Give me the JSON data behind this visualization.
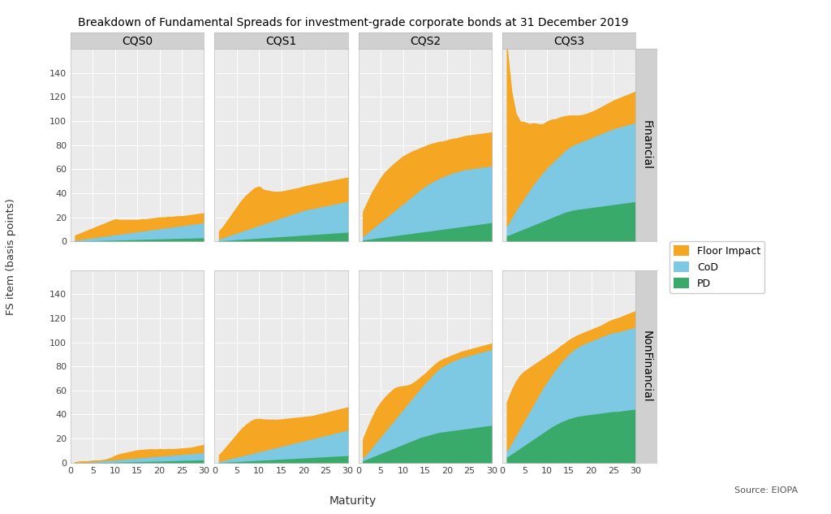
{
  "title": "Breakdown of Fundamental Spreads for investment-grade corporate bonds at 31 December 2019",
  "xlabel": "Maturity",
  "ylabel": "FS item (basis points)",
  "source": "Source: EIOPA",
  "col_labels": [
    "CQS0",
    "CQS1",
    "CQS2",
    "CQS3"
  ],
  "row_labels": [
    "Financial",
    "NonFinancial"
  ],
  "colors": {
    "floor_impact": "#F5A623",
    "cod": "#7DC8E3",
    "pd": "#3AAA6A"
  },
  "legend_labels": [
    "Floor Impact",
    "CoD",
    "PD"
  ],
  "bg_color": "#EBEBEB",
  "panel_bg": "#EBEBEB",
  "strip_bg": "#D0D0D0",
  "ylim": [
    0,
    160
  ],
  "yticks": [
    0,
    20,
    40,
    60,
    80,
    100,
    120,
    140
  ],
  "xticks": [
    0,
    5,
    10,
    15,
    20,
    25,
    30
  ],
  "data": {
    "Financial": {
      "CQS0": {
        "maturity": [
          1,
          2,
          3,
          4,
          5,
          6,
          7,
          8,
          9,
          10,
          11,
          12,
          13,
          14,
          15,
          16,
          17,
          18,
          19,
          20,
          21,
          22,
          23,
          24,
          25,
          26,
          27,
          28,
          29,
          30
        ],
        "pd": [
          0.5,
          0.6,
          0.7,
          0.8,
          0.9,
          1.0,
          1.1,
          1.2,
          1.3,
          1.4,
          1.5,
          1.6,
          1.7,
          1.8,
          1.9,
          2.0,
          2.1,
          2.2,
          2.3,
          2.4,
          2.5,
          2.6,
          2.7,
          2.8,
          2.9,
          3.0,
          3.1,
          3.2,
          3.3,
          3.4
        ],
        "cod": [
          0.8,
          1.2,
          1.6,
          2.0,
          2.4,
          2.8,
          3.2,
          3.6,
          4.0,
          4.4,
          4.8,
          5.2,
          5.6,
          6.0,
          6.4,
          6.8,
          7.2,
          7.6,
          8.0,
          8.4,
          8.8,
          9.2,
          9.6,
          10.0,
          10.4,
          10.8,
          11.2,
          11.6,
          12.0,
          12.4
        ],
        "floor": [
          3.5,
          4.5,
          5.5,
          6.5,
          7.5,
          8.5,
          9.5,
          10.5,
          11.5,
          12.5,
          11.5,
          11.0,
          10.5,
          10.0,
          9.5,
          9.5,
          9.0,
          9.0,
          9.0,
          9.0,
          8.5,
          8.5,
          8.0,
          8.0,
          7.5,
          7.5,
          7.5,
          7.5,
          7.5,
          7.5
        ]
      },
      "CQS1": {
        "maturity": [
          1,
          2,
          3,
          4,
          5,
          6,
          7,
          8,
          9,
          10,
          11,
          12,
          13,
          14,
          15,
          16,
          17,
          18,
          19,
          20,
          21,
          22,
          23,
          24,
          25,
          26,
          27,
          28,
          29,
          30
        ],
        "pd": [
          0.8,
          1.0,
          1.3,
          1.5,
          1.8,
          2.0,
          2.3,
          2.5,
          2.8,
          3.0,
          3.3,
          3.5,
          3.8,
          4.0,
          4.3,
          4.5,
          4.8,
          5.0,
          5.3,
          5.5,
          5.8,
          6.0,
          6.3,
          6.5,
          6.8,
          7.0,
          7.3,
          7.5,
          7.8,
          8.0
        ],
        "cod": [
          1.5,
          2.5,
          3.5,
          4.5,
          5.5,
          6.5,
          7.5,
          8.5,
          9.5,
          10.5,
          11.5,
          12.5,
          13.5,
          14.5,
          15.5,
          16.5,
          17.5,
          18.5,
          19.5,
          20.5,
          21.0,
          21.5,
          22.0,
          22.5,
          23.0,
          23.5,
          24.0,
          24.5,
          25.0,
          25.5
        ],
        "floor": [
          6.0,
          9.0,
          13.0,
          17.0,
          21.0,
          25.0,
          28.0,
          30.0,
          32.0,
          32.0,
          28.0,
          26.0,
          24.0,
          22.5,
          21.5,
          21.0,
          20.5,
          20.0,
          19.5,
          19.5,
          19.5,
          19.5,
          19.5,
          19.5,
          19.5,
          19.5,
          19.5,
          19.5,
          19.5,
          19.5
        ]
      },
      "CQS2": {
        "maturity": [
          1,
          2,
          3,
          4,
          5,
          6,
          7,
          8,
          9,
          10,
          11,
          12,
          13,
          14,
          15,
          16,
          17,
          18,
          19,
          20,
          21,
          22,
          23,
          24,
          25,
          26,
          27,
          28,
          29,
          30
        ],
        "pd": [
          1.5,
          2.0,
          2.5,
          3.0,
          3.5,
          4.0,
          4.5,
          5.0,
          5.5,
          6.0,
          6.5,
          7.0,
          7.5,
          8.0,
          8.5,
          9.0,
          9.5,
          10.0,
          10.5,
          11.0,
          11.5,
          12.0,
          12.5,
          13.0,
          13.5,
          14.0,
          14.5,
          15.0,
          15.5,
          16.0
        ],
        "cod": [
          3.0,
          5.5,
          8.0,
          10.5,
          13.0,
          15.5,
          18.0,
          20.5,
          23.0,
          25.5,
          28.0,
          30.5,
          33.0,
          35.5,
          37.5,
          39.5,
          41.0,
          42.5,
          43.5,
          44.5,
          45.5,
          46.0,
          46.5,
          47.0,
          47.0,
          47.0,
          47.0,
          47.0,
          47.0,
          47.0
        ],
        "floor": [
          20.0,
          25.0,
          30.0,
          33.0,
          36.0,
          38.0,
          38.5,
          39.0,
          39.0,
          39.0,
          38.0,
          37.0,
          35.5,
          34.0,
          33.0,
          32.0,
          31.0,
          30.0,
          29.0,
          28.5,
          28.0,
          27.5,
          27.5,
          27.5,
          27.5,
          27.5,
          27.5,
          27.5,
          27.5,
          27.5
        ]
      },
      "CQS3": {
        "maturity": [
          1,
          2,
          3,
          4,
          5,
          6,
          7,
          8,
          9,
          10,
          11,
          12,
          13,
          14,
          15,
          16,
          17,
          18,
          19,
          20,
          21,
          22,
          23,
          24,
          25,
          26,
          27,
          28,
          29,
          30
        ],
        "pd": [
          5.0,
          6.5,
          8.0,
          9.5,
          11.0,
          12.5,
          14.0,
          15.5,
          17.0,
          18.5,
          20.0,
          21.5,
          23.0,
          24.5,
          25.5,
          26.5,
          27.0,
          27.5,
          28.0,
          28.5,
          29.0,
          29.5,
          30.0,
          30.5,
          31.0,
          31.5,
          32.0,
          32.5,
          33.0,
          33.5
        ],
        "cod": [
          8.0,
          13.0,
          18.0,
          22.0,
          26.0,
          30.0,
          34.0,
          37.0,
          40.0,
          43.0,
          45.0,
          47.0,
          49.0,
          51.0,
          53.0,
          54.0,
          55.0,
          56.0,
          57.0,
          58.0,
          59.0,
          60.0,
          61.0,
          62.0,
          63.0,
          63.5,
          64.0,
          64.5,
          65.0,
          65.5
        ],
        "floor": [
          148.0,
          105.0,
          80.0,
          68.0,
          62.0,
          55.0,
          50.0,
          45.0,
          40.0,
          38.0,
          36.0,
          33.0,
          31.0,
          28.5,
          26.0,
          24.0,
          22.5,
          21.5,
          21.0,
          21.0,
          21.0,
          21.5,
          22.0,
          22.5,
          23.0,
          23.5,
          24.0,
          24.5,
          25.0,
          25.5
        ]
      }
    },
    "NonFinancial": {
      "CQS0": {
        "maturity": [
          1,
          2,
          3,
          4,
          5,
          6,
          7,
          8,
          9,
          10,
          11,
          12,
          13,
          14,
          15,
          16,
          17,
          18,
          19,
          20,
          21,
          22,
          23,
          24,
          25,
          26,
          27,
          28,
          29,
          30
        ],
        "pd": [
          0.1,
          0.15,
          0.2,
          0.25,
          0.3,
          0.35,
          0.4,
          0.5,
          0.6,
          0.7,
          0.8,
          0.9,
          1.0,
          1.1,
          1.2,
          1.3,
          1.4,
          1.5,
          1.6,
          1.7,
          1.8,
          1.9,
          2.0,
          2.1,
          2.2,
          2.3,
          2.4,
          2.5,
          2.6,
          2.7
        ],
        "cod": [
          0.2,
          0.4,
          0.6,
          0.8,
          1.0,
          1.2,
          1.4,
          1.6,
          1.8,
          2.0,
          2.2,
          2.4,
          2.6,
          2.8,
          3.0,
          3.2,
          3.4,
          3.6,
          3.8,
          4.0,
          4.2,
          4.4,
          4.6,
          4.8,
          5.0,
          5.2,
          5.4,
          5.6,
          5.8,
          6.0
        ],
        "floor": [
          0.0,
          0.0,
          0.0,
          0.0,
          0.0,
          0.0,
          0.0,
          0.5,
          1.5,
          3.0,
          4.0,
          4.5,
          5.0,
          5.5,
          6.0,
          6.0,
          6.0,
          6.0,
          5.5,
          5.5,
          5.0,
          5.0,
          4.5,
          4.5,
          4.5,
          4.5,
          4.5,
          5.0,
          5.5,
          6.0
        ]
      },
      "CQS1": {
        "maturity": [
          1,
          2,
          3,
          4,
          5,
          6,
          7,
          8,
          9,
          10,
          11,
          12,
          13,
          14,
          15,
          16,
          17,
          18,
          19,
          20,
          21,
          22,
          23,
          24,
          25,
          26,
          27,
          28,
          29,
          30
        ],
        "pd": [
          0.5,
          0.7,
          0.9,
          1.1,
          1.3,
          1.5,
          1.7,
          1.9,
          2.1,
          2.3,
          2.5,
          2.7,
          2.9,
          3.1,
          3.3,
          3.5,
          3.7,
          3.9,
          4.1,
          4.3,
          4.5,
          4.7,
          4.9,
          5.1,
          5.3,
          5.5,
          5.7,
          5.9,
          6.1,
          6.3
        ],
        "cod": [
          0.8,
          1.5,
          2.2,
          2.9,
          3.6,
          4.3,
          5.0,
          5.7,
          6.4,
          7.1,
          7.8,
          8.5,
          9.2,
          9.9,
          10.6,
          11.3,
          12.0,
          12.7,
          13.4,
          14.1,
          14.8,
          15.5,
          16.2,
          16.9,
          17.6,
          18.3,
          19.0,
          19.7,
          20.4,
          21.1
        ],
        "floor": [
          5.0,
          8.0,
          11.5,
          15.0,
          18.5,
          22.0,
          24.5,
          26.5,
          27.5,
          27.0,
          25.5,
          24.5,
          23.5,
          22.5,
          22.0,
          21.5,
          21.0,
          20.5,
          20.0,
          19.5,
          19.0,
          18.5,
          18.5,
          18.5,
          18.5,
          18.5,
          18.5,
          18.5,
          18.5,
          18.5
        ]
      },
      "CQS2": {
        "maturity": [
          1,
          2,
          3,
          4,
          5,
          6,
          7,
          8,
          9,
          10,
          11,
          12,
          13,
          14,
          15,
          16,
          17,
          18,
          19,
          20,
          21,
          22,
          23,
          24,
          25,
          26,
          27,
          28,
          29,
          30
        ],
        "pd": [
          2.0,
          3.5,
          5.0,
          6.5,
          8.0,
          9.5,
          11.0,
          12.5,
          14.0,
          15.5,
          17.0,
          18.5,
          20.0,
          21.5,
          22.5,
          23.5,
          24.5,
          25.5,
          26.0,
          26.5,
          27.0,
          27.5,
          28.0,
          28.5,
          29.0,
          29.5,
          30.0,
          30.5,
          31.0,
          31.5
        ],
        "cod": [
          2.5,
          5.0,
          8.0,
          11.0,
          14.0,
          17.0,
          20.0,
          23.0,
          26.0,
          29.0,
          32.0,
          35.0,
          38.0,
          41.0,
          44.0,
          47.0,
          50.0,
          52.5,
          54.5,
          56.0,
          57.5,
          58.5,
          59.5,
          60.0,
          60.5,
          61.0,
          61.5,
          62.0,
          62.5,
          63.0
        ],
        "floor": [
          15.0,
          20.0,
          24.0,
          27.0,
          28.0,
          28.0,
          27.0,
          26.0,
          23.0,
          19.0,
          15.0,
          12.0,
          10.0,
          8.5,
          7.5,
          7.0,
          6.5,
          6.0,
          5.5,
          5.0,
          4.5,
          4.5,
          4.5,
          4.5,
          4.5,
          4.5,
          4.5,
          4.5,
          4.5,
          4.5
        ]
      },
      "CQS3": {
        "maturity": [
          1,
          2,
          3,
          4,
          5,
          6,
          7,
          8,
          9,
          10,
          11,
          12,
          13,
          14,
          15,
          16,
          17,
          18,
          19,
          20,
          21,
          22,
          23,
          24,
          25,
          26,
          27,
          28,
          29,
          30
        ],
        "pd": [
          5.0,
          7.5,
          10.0,
          12.5,
          15.0,
          17.5,
          20.0,
          22.5,
          25.0,
          27.5,
          30.0,
          32.0,
          34.0,
          35.5,
          37.0,
          38.0,
          39.0,
          39.5,
          40.0,
          40.5,
          41.0,
          41.5,
          42.0,
          42.5,
          43.0,
          43.0,
          43.5,
          44.0,
          44.5,
          45.0
        ],
        "cod": [
          5.0,
          9.0,
          13.0,
          17.0,
          21.0,
          25.0,
          29.0,
          33.0,
          37.0,
          40.0,
          43.0,
          46.0,
          49.0,
          51.5,
          54.0,
          56.0,
          57.5,
          59.0,
          60.0,
          61.0,
          62.0,
          63.0,
          64.0,
          65.0,
          65.5,
          66.0,
          66.5,
          67.0,
          67.5,
          68.0
        ],
        "floor": [
          40.0,
          43.0,
          44.0,
          43.0,
          40.0,
          36.0,
          32.0,
          28.0,
          24.0,
          21.0,
          18.0,
          15.5,
          13.5,
          12.0,
          11.0,
          10.0,
          9.5,
          9.0,
          9.0,
          9.0,
          9.0,
          9.0,
          9.5,
          10.0,
          10.5,
          11.0,
          11.5,
          12.0,
          12.5,
          13.0
        ]
      }
    }
  }
}
